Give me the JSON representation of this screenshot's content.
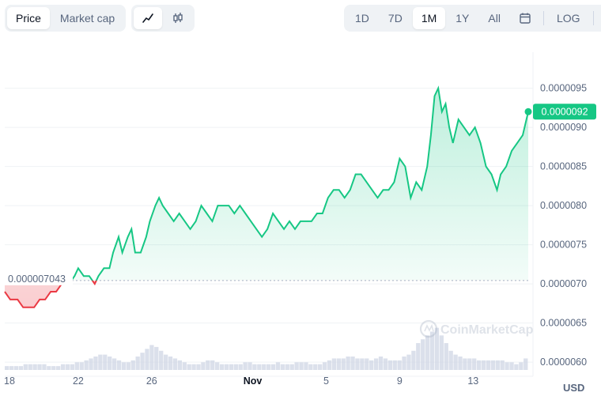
{
  "toolbar": {
    "metric_tabs": [
      {
        "label": "Price",
        "active": true
      },
      {
        "label": "Market cap",
        "active": false
      }
    ],
    "chart_type_icons": [
      {
        "icon": "line-chart-icon",
        "active": true
      },
      {
        "icon": "candlestick-icon",
        "active": false
      }
    ],
    "ranges": [
      {
        "label": "1D",
        "active": false
      },
      {
        "label": "7D",
        "active": false
      },
      {
        "label": "1M",
        "active": true
      },
      {
        "label": "1Y",
        "active": false
      },
      {
        "label": "All",
        "active": false
      }
    ],
    "calendar_icon": "calendar-icon",
    "log_label": "LOG",
    "download_icon": "download-icon"
  },
  "watermark": "CoinMarketCap",
  "unit_label": "USD",
  "chart_data": {
    "type": "line",
    "baseline": {
      "value": 7.043e-06,
      "label": "0.000007043"
    },
    "current": {
      "value": 9.2e-06,
      "label": "0.0000092"
    },
    "y_ticks": [
      {
        "value": 9.5e-06,
        "label": "0.0000095"
      },
      {
        "value": 9e-06,
        "label": "0.0000090"
      },
      {
        "value": 8.5e-06,
        "label": "0.0000085"
      },
      {
        "value": 8e-06,
        "label": "0.0000080"
      },
      {
        "value": 7.5e-06,
        "label": "0.0000075"
      },
      {
        "value": 7e-06,
        "label": "0.0000070"
      },
      {
        "value": 6.5e-06,
        "label": "0.0000065"
      },
      {
        "value": 6e-06,
        "label": "0.0000060"
      }
    ],
    "ylim": [
      5.9e-06,
      9.9e-06
    ],
    "xlim": [
      0,
      28.5
    ],
    "x_ticks": [
      {
        "x": 0,
        "label": "18",
        "bold": false
      },
      {
        "x": 4,
        "label": "22",
        "bold": false
      },
      {
        "x": 8,
        "label": "26",
        "bold": false
      },
      {
        "x": 13.5,
        "label": "Nov",
        "bold": true
      },
      {
        "x": 17.5,
        "label": "5",
        "bold": false
      },
      {
        "x": 21.5,
        "label": "9",
        "bold": false
      },
      {
        "x": 25.5,
        "label": "13",
        "bold": false
      }
    ],
    "colors": {
      "up": "#16c784",
      "down": "#ea3943",
      "volume": "#cfd6e4"
    },
    "series": [
      {
        "values": [
          [
            0.0,
            6.9e-06
          ],
          [
            0.3,
            6.8e-06
          ],
          [
            0.7,
            6.8e-06
          ],
          [
            1.0,
            6.7e-06
          ],
          [
            1.3,
            6.7e-06
          ],
          [
            1.6,
            6.7e-06
          ],
          [
            1.9,
            6.8e-06
          ],
          [
            2.2,
            6.8e-06
          ],
          [
            2.5,
            6.9e-06
          ],
          [
            2.8,
            6.9e-06
          ],
          [
            3.1,
            7e-06
          ],
          [
            3.3,
            7e-06
          ],
          [
            3.5,
            7e-06
          ],
          [
            3.8,
            7.1e-06
          ],
          [
            4.0,
            7.2e-06
          ],
          [
            4.3,
            7.1e-06
          ],
          [
            4.6,
            7.1e-06
          ],
          [
            4.9,
            7e-06
          ],
          [
            5.1,
            7.1e-06
          ],
          [
            5.4,
            7.2e-06
          ],
          [
            5.7,
            7.2e-06
          ],
          [
            5.9,
            7.4e-06
          ],
          [
            6.2,
            7.6e-06
          ],
          [
            6.4,
            7.4e-06
          ],
          [
            6.7,
            7.6e-06
          ],
          [
            6.9,
            7.7e-06
          ],
          [
            7.1,
            7.4e-06
          ],
          [
            7.4,
            7.4e-06
          ],
          [
            7.7,
            7.6e-06
          ],
          [
            7.9,
            7.8e-06
          ],
          [
            8.2,
            8e-06
          ],
          [
            8.4,
            8.1e-06
          ],
          [
            8.6,
            8e-06
          ],
          [
            8.9,
            7.9e-06
          ],
          [
            9.2,
            7.8e-06
          ],
          [
            9.5,
            7.9e-06
          ],
          [
            9.8,
            7.8e-06
          ],
          [
            10.1,
            7.7e-06
          ],
          [
            10.4,
            7.8e-06
          ],
          [
            10.7,
            8e-06
          ],
          [
            11.0,
            7.9e-06
          ],
          [
            11.3,
            7.8e-06
          ],
          [
            11.6,
            8e-06
          ],
          [
            11.9,
            8e-06
          ],
          [
            12.2,
            8e-06
          ],
          [
            12.5,
            7.9e-06
          ],
          [
            12.8,
            8e-06
          ],
          [
            13.1,
            7.9e-06
          ],
          [
            13.4,
            7.8e-06
          ],
          [
            13.7,
            7.7e-06
          ],
          [
            14.0,
            7.6e-06
          ],
          [
            14.3,
            7.7e-06
          ],
          [
            14.6,
            7.9e-06
          ],
          [
            14.9,
            7.8e-06
          ],
          [
            15.2,
            7.7e-06
          ],
          [
            15.5,
            7.8e-06
          ],
          [
            15.8,
            7.7e-06
          ],
          [
            16.1,
            7.8e-06
          ],
          [
            16.4,
            7.8e-06
          ],
          [
            16.7,
            7.8e-06
          ],
          [
            17.0,
            7.9e-06
          ],
          [
            17.3,
            7.9e-06
          ],
          [
            17.6,
            8.1e-06
          ],
          [
            17.9,
            8.2e-06
          ],
          [
            18.2,
            8.2e-06
          ],
          [
            18.5,
            8.1e-06
          ],
          [
            18.8,
            8.2e-06
          ],
          [
            19.1,
            8.4e-06
          ],
          [
            19.4,
            8.4e-06
          ],
          [
            19.7,
            8.3e-06
          ],
          [
            20.0,
            8.2e-06
          ],
          [
            20.3,
            8.1e-06
          ],
          [
            20.6,
            8.2e-06
          ],
          [
            20.9,
            8.2e-06
          ],
          [
            21.2,
            8.3e-06
          ],
          [
            21.5,
            8.6e-06
          ],
          [
            21.8,
            8.5e-06
          ],
          [
            22.1,
            8.1e-06
          ],
          [
            22.4,
            8.3e-06
          ],
          [
            22.7,
            8.2e-06
          ],
          [
            23.0,
            8.5e-06
          ],
          [
            23.2,
            8.9e-06
          ],
          [
            23.4,
            9.4e-06
          ],
          [
            23.6,
            9.5e-06
          ],
          [
            23.8,
            9.2e-06
          ],
          [
            24.0,
            9.3e-06
          ],
          [
            24.2,
            9e-06
          ],
          [
            24.4,
            8.8e-06
          ],
          [
            24.7,
            9.1e-06
          ],
          [
            25.0,
            9e-06
          ],
          [
            25.3,
            8.9e-06
          ],
          [
            25.6,
            9e-06
          ],
          [
            25.9,
            8.8e-06
          ],
          [
            26.2,
            8.5e-06
          ],
          [
            26.5,
            8.4e-06
          ],
          [
            26.8,
            8.2e-06
          ],
          [
            27.0,
            8.4e-06
          ],
          [
            27.3,
            8.5e-06
          ],
          [
            27.6,
            8.7e-06
          ],
          [
            27.9,
            8.8e-06
          ],
          [
            28.2,
            8.9e-06
          ],
          [
            28.5,
            9.2e-06
          ]
        ]
      }
    ],
    "volume": [
      2,
      2,
      2,
      2,
      3,
      3,
      3,
      3,
      3,
      2,
      2,
      2,
      3,
      3,
      3,
      4,
      4,
      5,
      6,
      7,
      8,
      8,
      7,
      6,
      5,
      4,
      4,
      5,
      7,
      9,
      11,
      13,
      12,
      10,
      8,
      7,
      6,
      5,
      4,
      3,
      3,
      3,
      4,
      5,
      5,
      4,
      3,
      3,
      3,
      3,
      3,
      4,
      4,
      3,
      3,
      3,
      3,
      3,
      4,
      3,
      3,
      3,
      4,
      4,
      4,
      3,
      3,
      3,
      4,
      5,
      6,
      6,
      6,
      7,
      7,
      6,
      6,
      6,
      5,
      6,
      7,
      6,
      5,
      5,
      5,
      7,
      8,
      10,
      14,
      16,
      18,
      20,
      22,
      18,
      14,
      10,
      8,
      7,
      6,
      6,
      6,
      5,
      5,
      5,
      5,
      5,
      5,
      4,
      4,
      3,
      4,
      6
    ]
  }
}
